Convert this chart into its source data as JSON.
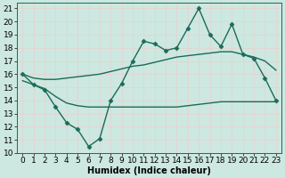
{
  "xlabel": "Humidex (Indice chaleur)",
  "background_color": "#cce8e0",
  "grid_color": "#e8d0d0",
  "line_color": "#1a6b5a",
  "xlim": [
    -0.5,
    23.5
  ],
  "ylim": [
    10,
    21.4
  ],
  "yticks": [
    10,
    11,
    12,
    13,
    14,
    15,
    16,
    17,
    18,
    19,
    20,
    21
  ],
  "xticks": [
    0,
    1,
    2,
    3,
    4,
    5,
    6,
    7,
    8,
    9,
    10,
    11,
    12,
    13,
    14,
    15,
    16,
    17,
    18,
    19,
    20,
    21,
    22,
    23
  ],
  "main_x": [
    0,
    1,
    2,
    3,
    4,
    5,
    6,
    7,
    8,
    9,
    10,
    11,
    12,
    13,
    14,
    15,
    16,
    17,
    18,
    19,
    20,
    21,
    22,
    23
  ],
  "main_y": [
    16.0,
    15.2,
    14.8,
    13.5,
    12.3,
    11.8,
    10.5,
    11.1,
    14.0,
    15.3,
    17.0,
    18.5,
    18.3,
    17.8,
    18.0,
    19.5,
    21.0,
    19.0,
    18.1,
    19.8,
    17.5,
    17.2,
    15.7,
    14.0
  ],
  "upper_x": [
    0,
    1,
    2,
    3,
    4,
    5,
    6,
    7,
    8,
    9,
    10,
    11,
    12,
    13,
    14,
    15,
    16,
    17,
    18,
    19,
    20,
    21,
    22,
    23
  ],
  "upper_y": [
    16.0,
    15.7,
    15.6,
    15.6,
    15.7,
    15.8,
    15.9,
    16.0,
    16.2,
    16.4,
    16.6,
    16.7,
    16.9,
    17.1,
    17.3,
    17.4,
    17.5,
    17.6,
    17.7,
    17.7,
    17.5,
    17.3,
    17.0,
    16.3
  ],
  "lower_x": [
    0,
    1,
    2,
    3,
    4,
    5,
    6,
    7,
    8,
    9,
    10,
    11,
    12,
    13,
    14,
    15,
    16,
    17,
    18,
    19,
    20,
    21,
    22,
    23
  ],
  "lower_y": [
    15.5,
    15.2,
    14.9,
    14.3,
    13.8,
    13.6,
    13.5,
    13.5,
    13.5,
    13.5,
    13.5,
    13.5,
    13.5,
    13.5,
    13.5,
    13.6,
    13.7,
    13.8,
    13.9,
    13.9,
    13.9,
    13.9,
    13.9,
    13.9
  ],
  "marker_style": "D",
  "marker_size": 2.5,
  "line_width": 1.0,
  "font_size": 6.5,
  "xlabel_fontsize": 7
}
